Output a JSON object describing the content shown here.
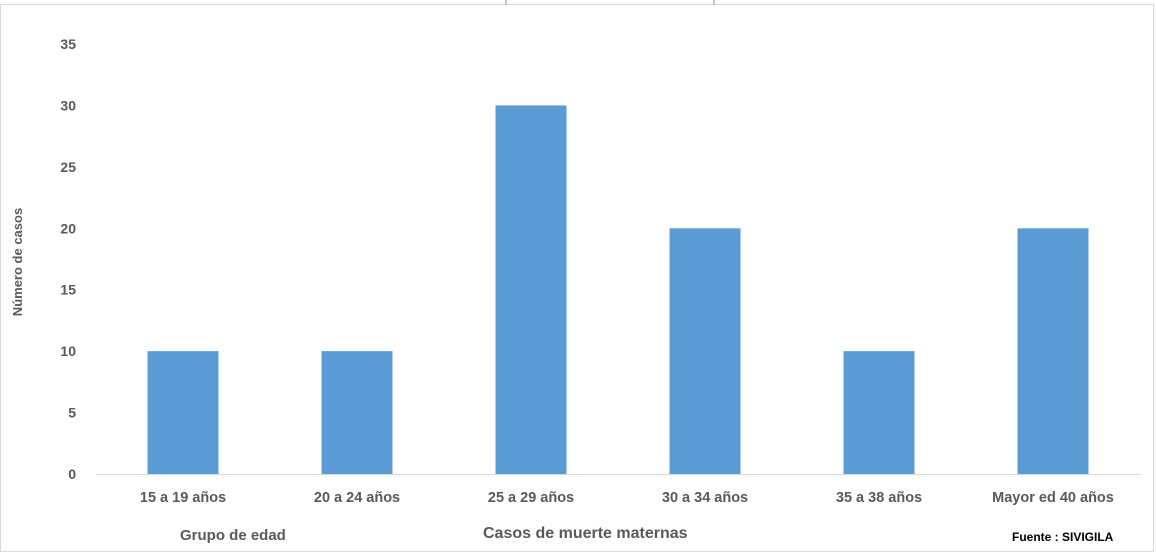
{
  "colors": {
    "bar": "#5b9bd5",
    "axis": "#d9d9d9",
    "text": "#595959",
    "top_marks": "#e06666"
  },
  "chart_data": {
    "type": "bar",
    "categories": [
      "15 a 19 años",
      "20 a 24 años",
      "25 a 29 años",
      "30 a 34 años",
      "35 a 38 años",
      "Mayor ed 40 años"
    ],
    "values": [
      10,
      10,
      30,
      20,
      10,
      20
    ],
    "title": "",
    "xlabel": "Casos de muerte maternas",
    "ylabel": "Número de casos",
    "ylim": [
      0,
      35
    ],
    "yticks": [
      0,
      5,
      10,
      15,
      20,
      25,
      30,
      35
    ],
    "grid": false,
    "legend": "none"
  },
  "footer": {
    "group_label": "Grupo de edad",
    "main_label": "Casos de muerte maternas",
    "source": "Fuente : SIVIGILA"
  }
}
